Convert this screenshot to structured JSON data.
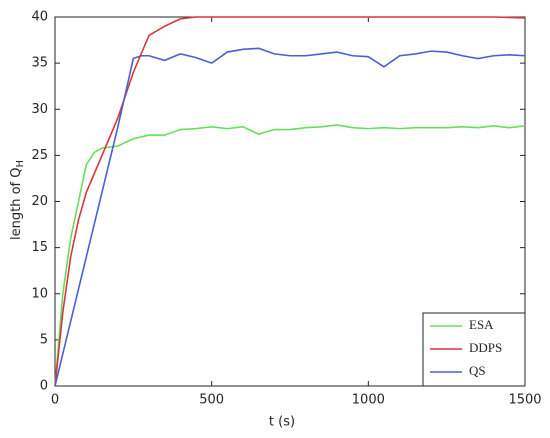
{
  "chart_data": {
    "type": "line",
    "xlabel": "t (s)",
    "ylabel": {
      "text": "length of Q",
      "subscript": "H"
    },
    "xlim": [
      0,
      1500
    ],
    "xticks": [
      0,
      500,
      1000,
      1500
    ],
    "ylim": [
      0,
      40
    ],
    "yticks": [
      0,
      5,
      10,
      15,
      20,
      25,
      30,
      35,
      40
    ],
    "legend": "lower right",
    "series": [
      {
        "name": "ESA",
        "color": "#66e05a",
        "x": [
          0,
          25,
          50,
          75,
          100,
          125,
          150,
          200,
          250,
          300,
          350,
          400,
          450,
          500,
          550,
          600,
          650,
          700,
          750,
          800,
          850,
          900,
          950,
          1000,
          1050,
          1100,
          1150,
          1200,
          1250,
          1300,
          1350,
          1400,
          1450,
          1500
        ],
        "values": [
          0,
          10,
          16,
          20,
          24,
          25.3,
          25.8,
          26,
          26.8,
          27.2,
          27.2,
          27.8,
          27.9,
          28.1,
          27.9,
          28.1,
          27.3,
          27.8,
          27.8,
          28.0,
          28.1,
          28.3,
          28.0,
          27.9,
          28.0,
          27.9,
          28.0,
          28.0,
          28.0,
          28.1,
          28.0,
          28.2,
          28.0,
          28.2
        ]
      },
      {
        "name": "DDPS",
        "color": "#d9363e",
        "x": [
          0,
          25,
          50,
          75,
          100,
          150,
          200,
          250,
          300,
          350,
          400,
          450,
          500,
          600,
          700,
          800,
          900,
          1000,
          1100,
          1200,
          1300,
          1400,
          1500
        ],
        "values": [
          0,
          8,
          14,
          18,
          21,
          25,
          29,
          34,
          38,
          39,
          39.8,
          40,
          40,
          40,
          40,
          40,
          40,
          40,
          40,
          40,
          40,
          40,
          39.9
        ]
      },
      {
        "name": "QS",
        "color": "#4a5fd0",
        "x": [
          0,
          50,
          100,
          150,
          200,
          250,
          275,
          300,
          350,
          400,
          450,
          500,
          550,
          600,
          650,
          700,
          750,
          800,
          850,
          900,
          950,
          1000,
          1050,
          1100,
          1150,
          1200,
          1250,
          1300,
          1350,
          1400,
          1450,
          1500
        ],
        "values": [
          0,
          7,
          14,
          21,
          28,
          35.5,
          35.8,
          35.8,
          35.3,
          36,
          35.6,
          35,
          36.2,
          36.5,
          36.6,
          36,
          35.8,
          35.8,
          36,
          36.2,
          35.8,
          35.7,
          34.6,
          35.8,
          36,
          36.3,
          36.2,
          35.8,
          35.5,
          35.8,
          35.9,
          35.8
        ]
      }
    ]
  }
}
